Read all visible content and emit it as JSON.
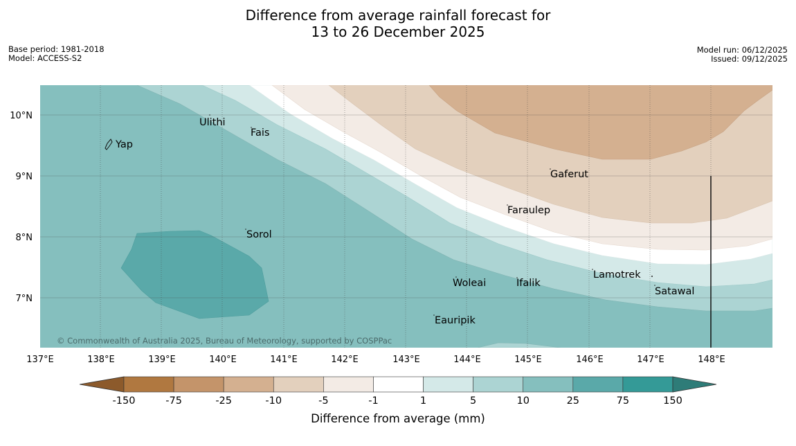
{
  "title": {
    "line1": "Difference from average rainfall forecast for",
    "line2": "13 to 26 December 2025"
  },
  "meta_left": {
    "base_period": "Base period: 1981-2018",
    "model": "Model: ACCESS-S2"
  },
  "meta_right": {
    "model_run": "Model run: 06/12/2025",
    "issued": "Issued: 09/12/2025"
  },
  "map": {
    "lon_ticks": [
      "137°E",
      "138°E",
      "139°E",
      "140°E",
      "141°E",
      "142°E",
      "143°E",
      "144°E",
      "145°E",
      "146°E",
      "147°E",
      "148°E"
    ],
    "lat_ticks": [
      "10°N",
      "9°N",
      "8°N",
      "7°N"
    ],
    "places": [
      "Yap",
      "Ulithi",
      "Fais",
      "Gaferut",
      "Faraulep",
      "Sorol",
      "Lamotrek",
      "Woleai",
      "Ifalik",
      "Satawal",
      "Eauripik"
    ],
    "copyright": "© Commonwealth of Australia 2025, Bureau of Meteorology, supported by COSPPac"
  },
  "colorbar": {
    "ticks": [
      "-150",
      "-75",
      "-25",
      "-10",
      "-5",
      "-1",
      "1",
      "5",
      "10",
      "25",
      "75",
      "150"
    ],
    "label": "Difference from average (mm)",
    "colors": {
      "under": "#8c5a2b",
      "c1": "#b07840",
      "c2": "#c4946a",
      "c3": "#d4b090",
      "c4": "#e3d0bd",
      "c5": "#f3ebe5",
      "c6": "#ffffff",
      "c7": "#d4e9e8",
      "c8": "#acd4d3",
      "c9": "#85bfbe",
      "c10": "#5aa9a9",
      "c11": "#349a97",
      "over": "#2e7c78"
    }
  }
}
